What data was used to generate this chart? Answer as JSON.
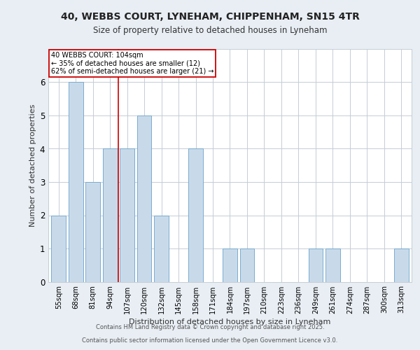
{
  "title_line1": "40, WEBBS COURT, LYNEHAM, CHIPPENHAM, SN15 4TR",
  "title_line2": "Size of property relative to detached houses in Lyneham",
  "xlabel": "Distribution of detached houses by size in Lyneham",
  "ylabel": "Number of detached properties",
  "categories": [
    "55sqm",
    "68sqm",
    "81sqm",
    "94sqm",
    "107sqm",
    "120sqm",
    "132sqm",
    "145sqm",
    "158sqm",
    "171sqm",
    "184sqm",
    "197sqm",
    "210sqm",
    "223sqm",
    "236sqm",
    "249sqm",
    "261sqm",
    "274sqm",
    "287sqm",
    "300sqm",
    "313sqm"
  ],
  "values": [
    2,
    6,
    3,
    4,
    4,
    5,
    2,
    0,
    4,
    0,
    1,
    1,
    0,
    0,
    0,
    1,
    1,
    0,
    0,
    0,
    1
  ],
  "bar_color": "#c8daea",
  "bar_edge_color": "#7aabcf",
  "vline_x": 3.5,
  "vline_color": "#cc0000",
  "annotation_text": "40 WEBBS COURT: 104sqm\n← 35% of detached houses are smaller (12)\n62% of semi-detached houses are larger (21) →",
  "annotation_box_color": "#ffffff",
  "annotation_box_edge": "#cc0000",
  "ylim": [
    0,
    7
  ],
  "yticks": [
    0,
    1,
    2,
    3,
    4,
    5,
    6
  ],
  "footer_line1": "Contains HM Land Registry data © Crown copyright and database right 2025.",
  "footer_line2": "Contains public sector information licensed under the Open Government Licence v3.0.",
  "background_color": "#e8eef4",
  "plot_bg_color": "#ffffff",
  "grid_color": "#c5cdd5"
}
